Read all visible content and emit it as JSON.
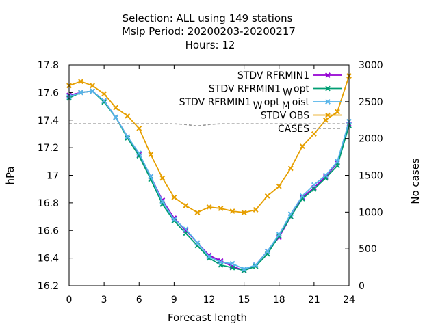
{
  "chart_data": {
    "type": "line",
    "title_lines": [
      "Selection: ALL using   149 stations",
      "Mslp   Period: 20200203-20200217",
      "Hours:  12"
    ],
    "xlabel": "Forecast length",
    "ylabel": "hPa",
    "y2label": "No cases",
    "xlim": [
      0,
      24
    ],
    "ylim": [
      16.2,
      17.8
    ],
    "y2lim": [
      0,
      3000
    ],
    "xticks": [
      0,
      3,
      6,
      9,
      12,
      15,
      18,
      21,
      24
    ],
    "yticks": [
      16.2,
      16.4,
      16.6,
      16.8,
      17,
      17.2,
      17.4,
      17.6,
      17.8
    ],
    "ytick_labels": [
      "16.2",
      "16.4",
      "16.6",
      "16.8",
      "17",
      "17.2",
      "17.4",
      "17.6",
      "17.8"
    ],
    "y2ticks": [
      0,
      500,
      1000,
      1500,
      2000,
      2500,
      3000
    ],
    "grid": false,
    "legend_position": "top-right",
    "x": [
      0,
      1,
      2,
      3,
      4,
      5,
      6,
      7,
      8,
      9,
      10,
      11,
      12,
      13,
      14,
      15,
      16,
      17,
      18,
      19,
      20,
      21,
      22,
      23,
      24
    ],
    "series": [
      {
        "name": "STDV RFRMIN1",
        "color": "#9400d3",
        "marker": "x",
        "values": [
          17.58,
          17.6,
          17.61,
          17.54,
          17.42,
          17.28,
          17.15,
          16.99,
          16.82,
          16.69,
          16.6,
          16.51,
          16.42,
          16.38,
          16.34,
          16.31,
          16.35,
          16.45,
          16.55,
          16.7,
          16.84,
          16.91,
          16.99,
          17.09,
          17.37
        ]
      },
      {
        "name": "STDV RFRMIN1",
        "name_sub": "W",
        "name_suffix": "opt",
        "color": "#009e73",
        "marker": "x",
        "values": [
          17.56,
          17.6,
          17.61,
          17.53,
          17.42,
          17.27,
          17.14,
          16.97,
          16.79,
          16.67,
          16.58,
          16.49,
          16.4,
          16.35,
          16.33,
          16.31,
          16.34,
          16.43,
          16.56,
          16.7,
          16.83,
          16.9,
          16.98,
          17.07,
          17.36
        ]
      },
      {
        "name": "STDV RFRMIN1",
        "name_sub": "W",
        "name_suffix": "opt",
        "name_sub2": "M",
        "name_suffix2": "oist",
        "color": "#56b4e9",
        "marker": "x",
        "values": [
          17.57,
          17.6,
          17.61,
          17.54,
          17.42,
          17.28,
          17.16,
          16.99,
          16.81,
          16.68,
          16.61,
          16.51,
          16.41,
          16.37,
          16.36,
          16.32,
          16.35,
          16.45,
          16.57,
          16.72,
          16.85,
          16.93,
          17.0,
          17.1,
          17.39
        ]
      },
      {
        "name": "STDV OBS",
        "color": "#e69f00",
        "marker": "x",
        "values": [
          17.65,
          17.68,
          17.65,
          17.59,
          17.49,
          17.43,
          17.34,
          17.15,
          16.98,
          16.84,
          16.78,
          16.73,
          16.77,
          16.76,
          16.74,
          16.73,
          16.75,
          16.85,
          16.92,
          17.05,
          17.21,
          17.3,
          17.4,
          17.46,
          17.72
        ]
      },
      {
        "name": "CASES",
        "color": "#999999",
        "dashed": true,
        "axis": "y2",
        "values": [
          2200,
          2200,
          2200,
          2200,
          2200,
          2200,
          2200,
          2200,
          2200,
          2200,
          2190,
          2170,
          2190,
          2200,
          2200,
          2200,
          2200,
          2200,
          2200,
          2200,
          2200,
          2200,
          2200,
          2200,
          2200
        ]
      }
    ]
  }
}
